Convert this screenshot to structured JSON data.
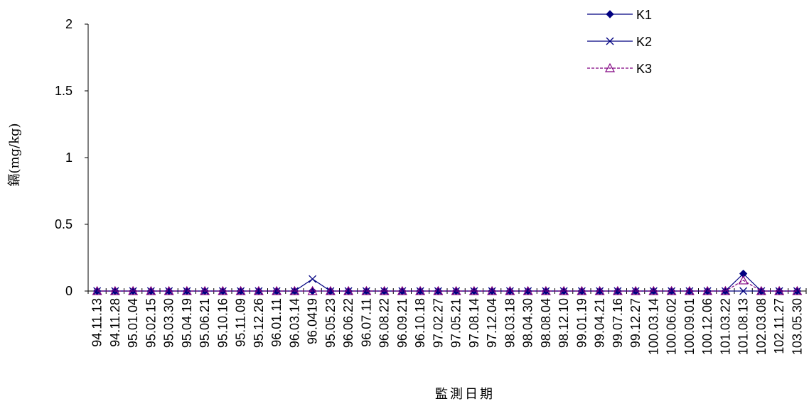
{
  "chart_data": {
    "type": "line",
    "title": "",
    "xlabel": "監測日期",
    "ylabel": "鎘(mg/kg)",
    "ylim": [
      0,
      2
    ],
    "yticks": [
      0,
      0.5,
      1,
      1.5,
      2
    ],
    "ytick_labels": [
      "0",
      "0.5",
      "1",
      "1.5",
      "2"
    ],
    "grid": false,
    "legend_position": "top-right",
    "categories": [
      "94.11.13",
      "94.11.28",
      "95.01.04",
      "95.02.15",
      "95.03.30",
      "95.04.19",
      "95.06.21",
      "95.10.16",
      "95.11.09",
      "95.12.26",
      "96.01.11",
      "96.03.14",
      "96.0419",
      "95.05.23",
      "96.06.22",
      "96.07.11",
      "96.08.22",
      "96.09.21",
      "96.10.18",
      "97.02.27",
      "97.05.21",
      "97.08.14",
      "97.12.04",
      "98.03.18",
      "98.04.30",
      "98.08.04",
      "98.12.10",
      "99.01.19",
      "99.04.21",
      "99.07.16",
      "99.12.27",
      "100.03.14",
      "100.06.02",
      "100.09.01",
      "100.12.06",
      "101.03.22",
      "101.08.13",
      "102.03.08",
      "102.11.27",
      "103.05.30"
    ],
    "series": [
      {
        "name": "K1",
        "color": "#000080",
        "marker": "diamond",
        "dash": "solid",
        "values": [
          0,
          0,
          0,
          0,
          0,
          0,
          0,
          0,
          0,
          0,
          0,
          0,
          0,
          0,
          0,
          0,
          0,
          0,
          0,
          0,
          0,
          0,
          0,
          0,
          0,
          0,
          0,
          0,
          0,
          0,
          0,
          0,
          0,
          0,
          0,
          0,
          0.13,
          0,
          0,
          0
        ]
      },
      {
        "name": "K2",
        "color": "#000080",
        "marker": "x",
        "dash": "solid",
        "values": [
          0,
          0,
          0,
          0,
          0,
          0,
          0,
          0,
          0,
          0,
          0,
          0,
          0.09,
          0,
          0,
          0,
          0,
          0,
          0,
          0,
          0,
          0,
          0,
          0,
          0,
          0,
          0,
          0,
          0,
          0,
          0,
          0,
          0,
          0,
          0,
          0,
          0,
          0,
          0,
          0
        ]
      },
      {
        "name": "K3",
        "color": "#800080",
        "marker": "triangle",
        "dash": "dashed",
        "values": [
          0,
          0,
          0,
          0,
          0,
          0,
          0,
          0,
          0,
          0,
          0,
          0,
          0,
          0,
          0,
          0,
          0,
          0,
          0,
          0,
          0,
          0,
          0,
          0,
          0,
          0,
          0,
          0,
          0,
          0,
          0,
          0,
          0,
          0,
          0,
          0,
          0.08,
          0,
          0,
          0
        ]
      }
    ]
  }
}
